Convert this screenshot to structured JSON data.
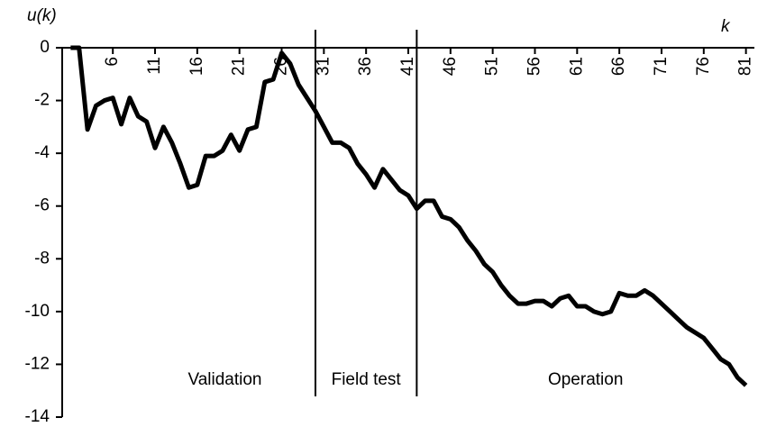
{
  "chart_data": {
    "type": "line",
    "y_label": "u(k)",
    "x_label": "k",
    "x": [
      1,
      2,
      3,
      4,
      5,
      6,
      7,
      8,
      9,
      10,
      11,
      12,
      13,
      14,
      15,
      16,
      17,
      18,
      19,
      20,
      21,
      22,
      23,
      24,
      25,
      26,
      27,
      28,
      29,
      30,
      31,
      32,
      33,
      34,
      35,
      36,
      37,
      38,
      39,
      40,
      41,
      42,
      43,
      44,
      45,
      46,
      47,
      48,
      49,
      50,
      51,
      52,
      53,
      54,
      55,
      56,
      57,
      58,
      59,
      60,
      61,
      62,
      63,
      64,
      65,
      66,
      67,
      68,
      69,
      70,
      71,
      72,
      73,
      74,
      75,
      76,
      77,
      78,
      79,
      80,
      81
    ],
    "series": [
      {
        "color": "#000000",
        "values": [
          0,
          0,
          -3.1,
          -2.2,
          -2.0,
          -1.9,
          -2.9,
          -1.9,
          -2.6,
          -2.8,
          -3.8,
          -3.0,
          -3.6,
          -4.4,
          -5.3,
          -5.2,
          -4.1,
          -4.1,
          -3.9,
          -3.3,
          -3.9,
          -3.1,
          -3.0,
          -1.3,
          -1.2,
          -0.2,
          -0.6,
          -1.4,
          -1.9,
          -2.4,
          -3.0,
          -3.6,
          -3.6,
          -3.8,
          -4.4,
          -4.8,
          -5.3,
          -4.6,
          -5.0,
          -5.4,
          -5.6,
          -6.1,
          -5.8,
          -5.8,
          -6.4,
          -6.5,
          -6.8,
          -7.3,
          -7.7,
          -8.2,
          -8.5,
          -9.0,
          -9.4,
          -9.7,
          -9.7,
          -9.6,
          -9.6,
          -9.8,
          -9.5,
          -9.4,
          -9.8,
          -9.8,
          -10.0,
          -10.1,
          -10.0,
          -9.3,
          -9.4,
          -9.4,
          -9.2,
          -9.4,
          -9.7,
          -10.0,
          -10.3,
          -10.6,
          -10.8,
          -11.0,
          -11.4,
          -11.8,
          -12.0,
          -12.5,
          -12.8
        ]
      }
    ],
    "xlim": [
      0,
      82
    ],
    "xticks": [
      6,
      11,
      16,
      21,
      26,
      31,
      36,
      41,
      46,
      51,
      56,
      61,
      66,
      71,
      76,
      81
    ],
    "ylim": [
      -14,
      0
    ],
    "yticks": [
      0,
      -2,
      -4,
      -6,
      -8,
      -10,
      -12,
      -14
    ],
    "phase_boundaries": [
      30,
      42
    ],
    "annotations": [
      "Validation",
      "Field test",
      "Operation"
    ]
  }
}
